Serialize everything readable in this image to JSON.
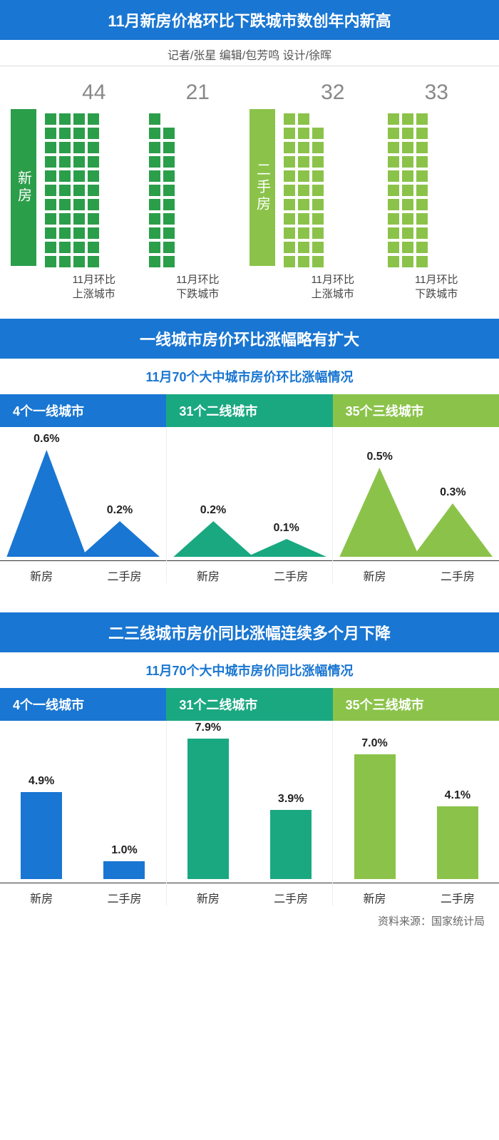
{
  "colors": {
    "main_blue": "#1976d2",
    "dark_green": "#2b9e4a",
    "teal": "#1aa881",
    "lime": "#8bc34a",
    "gray_text": "#888"
  },
  "header": {
    "title": "11月新房价格环比下跌城市数创年内新高",
    "byline": "记者/张星  编辑/包芳鸣  设计/徐晖"
  },
  "pictogram": {
    "dot_size": 16,
    "rows": 11,
    "left": {
      "band_label": "新房",
      "band_color": "#2b9e4a",
      "cols": [
        {
          "value": 44,
          "label": "11月环比\n上涨城市",
          "color": "#2b9e4a"
        },
        {
          "value": 21,
          "label": "11月环比\n下跌城市",
          "color": "#2b9e4a"
        }
      ]
    },
    "right": {
      "band_label": "二手房",
      "band_color": "#8bc34a",
      "cols": [
        {
          "value": 32,
          "label": "11月环比\n上涨城市",
          "color": "#8bc34a"
        },
        {
          "value": 33,
          "label": "11月环比\n下跌城市",
          "color": "#8bc34a"
        }
      ]
    }
  },
  "section2": {
    "header": "一线城市房价环比涨幅略有扩大",
    "subtitle": "11月70个大中城市房价环比涨幅情况",
    "tabs": [
      {
        "label": "4个一线城市",
        "bg": "#1976d2"
      },
      {
        "label": "31个二线城市",
        "bg": "#1aa881"
      },
      {
        "label": "35个三线城市",
        "bg": "#8bc34a"
      }
    ],
    "ymax": 0.6,
    "cells": [
      {
        "color": "#1976d2",
        "peaks": [
          {
            "x": "新房",
            "v": 0.6,
            "label": "0.6%"
          },
          {
            "x": "二手房",
            "v": 0.2,
            "label": "0.2%"
          }
        ]
      },
      {
        "color": "#1aa881",
        "peaks": [
          {
            "x": "新房",
            "v": 0.2,
            "label": "0.2%"
          },
          {
            "x": "二手房",
            "v": 0.1,
            "label": "0.1%"
          }
        ]
      },
      {
        "color": "#8bc34a",
        "peaks": [
          {
            "x": "新房",
            "v": 0.5,
            "label": "0.5%"
          },
          {
            "x": "二手房",
            "v": 0.3,
            "label": "0.3%"
          }
        ]
      }
    ],
    "xlabels": [
      "新房",
      "二手房"
    ]
  },
  "section3": {
    "header": "二三线城市房价同比涨幅连续多个月下降",
    "subtitle": "11月70个大中城市房价同比涨幅情况",
    "tabs": [
      {
        "label": "4个一线城市",
        "bg": "#1976d2"
      },
      {
        "label": "31个二线城市",
        "bg": "#1aa881"
      },
      {
        "label": "35个三线城市",
        "bg": "#8bc34a"
      }
    ],
    "ymax": 8.0,
    "cells": [
      {
        "color": "#1976d2",
        "bars": [
          {
            "x": "新房",
            "v": 4.9,
            "label": "4.9%"
          },
          {
            "x": "二手房",
            "v": 1.0,
            "label": "1.0%"
          }
        ]
      },
      {
        "color": "#1aa881",
        "bars": [
          {
            "x": "新房",
            "v": 7.9,
            "label": "7.9%"
          },
          {
            "x": "二手房",
            "v": 3.9,
            "label": "3.9%"
          }
        ]
      },
      {
        "color": "#8bc34a",
        "bars": [
          {
            "x": "新房",
            "v": 7.0,
            "label": "7.0%"
          },
          {
            "x": "二手房",
            "v": 4.1,
            "label": "4.1%"
          }
        ]
      }
    ],
    "xlabels": [
      "新房",
      "二手房"
    ]
  },
  "source": "资料来源：国家统计局"
}
